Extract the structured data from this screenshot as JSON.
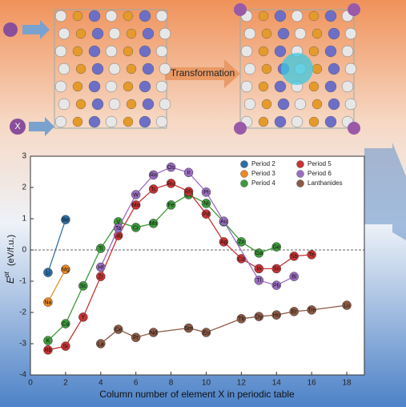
{
  "header": {
    "transformation": "Transformation",
    "dopant": "X"
  },
  "chart_data": {
    "type": "line",
    "xlabel": "Column number of element X in periodic table",
    "ylabel": [
      "E",
      "pt",
      "(eV/f.u.)"
    ],
    "xlim": [
      0,
      19
    ],
    "xticks": [
      0,
      2,
      4,
      6,
      8,
      10,
      12,
      14,
      16,
      18
    ],
    "ylim": [
      -4,
      3
    ],
    "yticks": [
      -4,
      -3,
      -2,
      -1,
      0,
      1,
      2,
      3
    ],
    "legend": "top-right",
    "series": [
      {
        "name": "Period 2",
        "color": "#2f6fa6",
        "x": [
          1,
          2
        ],
        "values": [
          -0.72,
          0.97
        ],
        "labels": [
          "Li",
          "Be"
        ]
      },
      {
        "name": "Period 3",
        "color": "#ee8a22",
        "x": [
          1,
          2
        ],
        "values": [
          -1.67,
          -0.62
        ],
        "labels": [
          "Na",
          "Mg"
        ]
      },
      {
        "name": "Period 4",
        "color": "#3d9a3b",
        "x": [
          1,
          2,
          3,
          4,
          5,
          6,
          7,
          8,
          9,
          10,
          11,
          12,
          13,
          14
        ],
        "values": [
          -2.9,
          -2.36,
          -1.15,
          0.05,
          0.9,
          0.72,
          0.85,
          1.44,
          1.77,
          1.49,
          0.9,
          0.26,
          -0.1,
          0.1
        ],
        "labels": [
          "K",
          "Ca",
          "Sc",
          "Ti",
          "V",
          "Cr",
          "Mn",
          "Fe",
          "Co",
          "Ni",
          "Cu",
          "Zn",
          "Ga",
          "Ge"
        ]
      },
      {
        "name": "Period 5",
        "color": "#c93333",
        "x": [
          1,
          2,
          3,
          4,
          5,
          6,
          7,
          8,
          9,
          10,
          11,
          12,
          13,
          14,
          15,
          16
        ],
        "values": [
          -3.2,
          -3.08,
          -2.15,
          -0.85,
          0.46,
          1.44,
          1.95,
          2.13,
          1.87,
          1.15,
          0.26,
          -0.28,
          -0.6,
          -0.6,
          -0.2,
          -0.15
        ],
        "labels": [
          "Rb",
          "Sr",
          "Y",
          "Zr",
          "Nb",
          "Mo",
          "Tc",
          "Ru",
          "Rh",
          "Pd",
          "Ag",
          "Cd",
          "In",
          "Sn",
          "Sb",
          "Te"
        ]
      },
      {
        "name": "Period 6",
        "color": "#9b6dc2",
        "x": [
          4,
          5,
          6,
          7,
          8,
          9,
          10,
          11,
          13,
          14,
          15
        ],
        "values": [
          -0.55,
          0.7,
          1.77,
          2.4,
          2.65,
          2.48,
          1.85,
          0.92,
          -0.97,
          -1.13,
          -0.85
        ],
        "labels": [
          "Hf",
          "Ta",
          "W",
          "Re",
          "Os",
          "Ir",
          "Pt",
          "Au",
          "Tl",
          "Pb",
          "Bi"
        ]
      },
      {
        "name": "Lanthanides",
        "color": "#8b5a45",
        "x": [
          4,
          5,
          6,
          7,
          9,
          10,
          12,
          13,
          14,
          15,
          16,
          18
        ],
        "values": [
          -3.0,
          -2.54,
          -2.8,
          -2.64,
          -2.5,
          -2.64,
          -2.2,
          -2.13,
          -2.08,
          -1.97,
          -1.92,
          -1.77
        ],
        "labels": [
          "La",
          "Ce",
          "Pr",
          "Nd",
          "Sm",
          "Eu",
          "Tb",
          "Dy",
          "Ho",
          "Er",
          "Tm",
          "Lu"
        ]
      }
    ]
  }
}
